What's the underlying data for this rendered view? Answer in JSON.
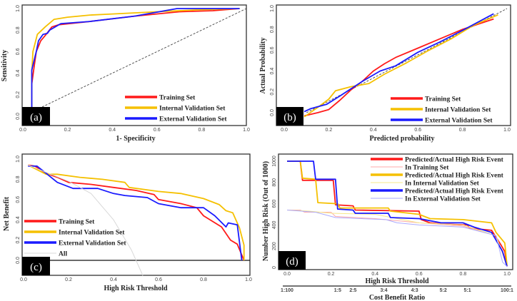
{
  "colors": {
    "training": "#ff1a1a",
    "internal": "#f5c000",
    "external": "#1a1aff",
    "training_light": "#ffaaaa",
    "internal_light": "#f5e88a",
    "external_light": "#aaaaff",
    "all": "#d8d8d8"
  },
  "chart_data": [
    {
      "id": "a",
      "type": "line",
      "panel_label": "(a)",
      "title": "",
      "xlabel": "1- Specificity",
      "ylabel": "Sensitivity",
      "xlim": [
        0,
        1
      ],
      "ylim": [
        0,
        1
      ],
      "xticks": [
        "0.0",
        "0.2",
        "0.4",
        "0.6",
        "0.8",
        "1.0"
      ],
      "xtick_values": [
        0,
        0.2,
        0.4,
        0.6,
        0.8,
        1
      ],
      "yticks": [
        "0.0",
        "0.2",
        "0.4",
        "0.6",
        "0.8",
        "1.0"
      ],
      "ytick_values": [
        0,
        0.2,
        0.4,
        0.6,
        0.8,
        1
      ],
      "legend_position": "bottom-right",
      "reference_line": {
        "style": "dashed",
        "x": [
          0,
          1
        ],
        "y": [
          0,
          1
        ]
      },
      "series": [
        {
          "name": "Training Set",
          "color_key": "training",
          "x": [
            0.04,
            0.04,
            0.05,
            0.06,
            0.08,
            0.1,
            0.13,
            0.16,
            0.3,
            0.5,
            0.7,
            0.85,
            0.97
          ],
          "y": [
            0,
            0.3,
            0.45,
            0.6,
            0.7,
            0.75,
            0.83,
            0.85,
            0.88,
            0.93,
            0.97,
            0.98,
            1.0
          ]
        },
        {
          "name": "Internal Validation Set",
          "color_key": "internal",
          "x": [
            0.04,
            0.04,
            0.045,
            0.065,
            0.1,
            0.14,
            0.2,
            0.3,
            0.4,
            0.6,
            0.8,
            0.97
          ],
          "y": [
            0,
            0.4,
            0.6,
            0.76,
            0.83,
            0.9,
            0.92,
            0.94,
            0.95,
            0.97,
            0.99,
            1.0
          ]
        },
        {
          "name": "External Validation Set",
          "color_key": "external",
          "x": [
            0.04,
            0.04,
            0.06,
            0.07,
            0.09,
            0.11,
            0.12,
            0.17,
            0.3,
            0.5,
            0.69,
            0.97
          ],
          "y": [
            0,
            0.43,
            0.6,
            0.7,
            0.76,
            0.77,
            0.8,
            0.86,
            0.88,
            0.93,
            1.0,
            1.0
          ]
        }
      ]
    },
    {
      "id": "b",
      "type": "line",
      "panel_label": "(b)",
      "title": "",
      "xlabel": "Predicted probability",
      "ylabel": "Actual Probability",
      "xlim": [
        0,
        1
      ],
      "ylim": [
        -0.1,
        1
      ],
      "xticks": [
        "0.0",
        "0.2",
        "0.4",
        "0.6",
        "0.8",
        "1.0"
      ],
      "xtick_values": [
        0,
        0.2,
        0.4,
        0.6,
        0.8,
        1
      ],
      "yticks": [
        "0.0",
        "0.2",
        "0.4",
        "0.6",
        "0.8",
        "1.0"
      ],
      "ytick_values": [
        0,
        0.2,
        0.4,
        0.6,
        0.8,
        1
      ],
      "legend_position": "bottom-right",
      "reference_line": {
        "style": "dashed",
        "x": [
          0.1,
          1
        ],
        "y": [
          0,
          1
        ]
      },
      "series": [
        {
          "name": "Training Set",
          "color_key": "training",
          "x": [
            0.09,
            0.15,
            0.2,
            0.25,
            0.3,
            0.35,
            0.4,
            0.45,
            0.5,
            0.6,
            0.7,
            0.8,
            0.94
          ],
          "y": [
            -0.03,
            0.0,
            0.03,
            0.12,
            0.22,
            0.3,
            0.4,
            0.47,
            0.53,
            0.62,
            0.71,
            0.8,
            0.9
          ]
        },
        {
          "name": "Internal Validation Set",
          "color_key": "internal",
          "x": [
            0.09,
            0.15,
            0.2,
            0.23,
            0.3,
            0.38,
            0.45,
            0.55,
            0.65,
            0.75,
            0.85,
            0.96
          ],
          "y": [
            -0.04,
            0.05,
            0.13,
            0.21,
            0.25,
            0.28,
            0.37,
            0.48,
            0.6,
            0.71,
            0.84,
            0.94
          ]
        },
        {
          "name": "External Validation Set",
          "color_key": "external",
          "x": [
            0.09,
            0.12,
            0.19,
            0.25,
            0.35,
            0.43,
            0.5,
            0.6,
            0.7,
            0.8,
            0.94
          ],
          "y": [
            0.01,
            0.04,
            0.08,
            0.16,
            0.3,
            0.4,
            0.45,
            0.58,
            0.68,
            0.79,
            0.95
          ]
        }
      ]
    },
    {
      "id": "c",
      "type": "line",
      "panel_label": "(c)",
      "title": "",
      "xlabel": "High Risk Threshold",
      "ylabel": "Net Benefit",
      "xlim": [
        0,
        1
      ],
      "ylim": [
        -0.15,
        1
      ],
      "xticks": [
        "0.0",
        "0.2",
        "0.4",
        "0.6",
        "0.8",
        "1.0"
      ],
      "xtick_values": [
        0,
        0.2,
        0.4,
        0.6,
        0.8,
        1
      ],
      "yticks": [
        "0.0",
        "0.2",
        "0.4",
        "0.6",
        "0.8",
        "1.0"
      ],
      "ytick_values": [
        0,
        0.2,
        0.4,
        0.6,
        0.8,
        1
      ],
      "legend_position": "bottom-left",
      "series": [
        {
          "name": "Training Set",
          "color_key": "training",
          "x": [
            0.02,
            0.05,
            0.1,
            0.15,
            0.2,
            0.3,
            0.4,
            0.5,
            0.58,
            0.6,
            0.7,
            0.77,
            0.8,
            0.88,
            0.92,
            0.95,
            0.98
          ],
          "y": [
            0.94,
            0.93,
            0.86,
            0.82,
            0.77,
            0.75,
            0.72,
            0.69,
            0.65,
            0.6,
            0.56,
            0.52,
            0.44,
            0.33,
            0.2,
            0.16,
            0.0
          ]
        },
        {
          "name": "Internal Validation Set",
          "color_key": "internal",
          "x": [
            0.02,
            0.1,
            0.15,
            0.25,
            0.35,
            0.45,
            0.47,
            0.6,
            0.7,
            0.8,
            0.87,
            0.9,
            0.93,
            0.96,
            0.98,
            0.98
          ],
          "y": [
            0.94,
            0.85,
            0.85,
            0.82,
            0.8,
            0.77,
            0.72,
            0.68,
            0.66,
            0.61,
            0.55,
            0.49,
            0.47,
            0.32,
            0.15,
            0.0
          ]
        },
        {
          "name": "External Validation Set",
          "color_key": "external",
          "x": [
            0.02,
            0.06,
            0.1,
            0.15,
            0.22,
            0.33,
            0.4,
            0.45,
            0.55,
            0.6,
            0.7,
            0.8,
            0.85,
            0.9,
            0.91,
            0.95,
            0.97
          ],
          "y": [
            0.93,
            0.93,
            0.86,
            0.77,
            0.71,
            0.71,
            0.66,
            0.64,
            0.62,
            0.56,
            0.52,
            0.52,
            0.44,
            0.33,
            0.37,
            0.35,
            0.0
          ]
        },
        {
          "name": "All",
          "color_key": "all",
          "x": [
            0.02,
            0.2,
            0.3,
            0.4,
            0.48,
            0.53
          ],
          "y": [
            0.94,
            0.78,
            0.66,
            0.4,
            0.1,
            -0.15
          ]
        }
      ],
      "zero_line": true
    },
    {
      "id": "d",
      "type": "line",
      "panel_label": "(d)",
      "title": "",
      "xlabel": "High Risk Threshold",
      "ylabel": "Number High Risk (Out of 1000)",
      "xlim": [
        0,
        1
      ],
      "ylim": [
        0,
        1000
      ],
      "xticks": [
        "0.0",
        "0.2",
        "0.4",
        "0.6",
        "0.8",
        "1.0"
      ],
      "xtick_values": [
        0,
        0.2,
        0.4,
        0.6,
        0.8,
        1
      ],
      "yticks": [
        "0",
        "200",
        "400",
        "600",
        "800",
        "1000"
      ],
      "ytick_values": [
        0,
        200,
        400,
        600,
        800,
        1000
      ],
      "secondary_xlabel": "Cost Benefit Ratio",
      "secondary_xticks": [
        "1:100",
        "1:5",
        "2:5",
        "3:4",
        "4:3",
        "5:2",
        "5:1",
        "100:1"
      ],
      "secondary_xtick_values": [
        0.0,
        0.23,
        0.3,
        0.44,
        0.58,
        0.71,
        0.82,
        1.0
      ],
      "legend_position": "top-right",
      "series": [
        {
          "name": "Predicted/Actual High Risk Event",
          "color_key": "training",
          "x": [
            0,
            0.06,
            0.07,
            0.21,
            0.22,
            0.3,
            0.31,
            0.6,
            0.61,
            0.65,
            0.7,
            0.82,
            0.83,
            0.93,
            0.97,
            0.99,
            1.0
          ],
          "y": [
            1000,
            1000,
            820,
            820,
            590,
            580,
            540,
            530,
            450,
            420,
            410,
            400,
            370,
            350,
            220,
            150,
            10
          ]
        },
        {
          "name": "In Training Set",
          "color_key": "training_light",
          "x": [
            0,
            0.06,
            0.08,
            0.2,
            0.22,
            0.4,
            0.6,
            0.8,
            0.95,
            1.0
          ],
          "y": [
            540,
            540,
            520,
            520,
            480,
            460,
            420,
            390,
            300,
            10
          ]
        },
        {
          "name": "Predicted/Actual High Risk Event",
          "color_key": "internal",
          "x": [
            0,
            0.06,
            0.07,
            0.13,
            0.14,
            0.23,
            0.24,
            0.46,
            0.47,
            0.6,
            0.65,
            0.8,
            0.93,
            0.95,
            0.99,
            1.0
          ],
          "y": [
            1000,
            1000,
            840,
            830,
            610,
            600,
            560,
            560,
            530,
            500,
            460,
            450,
            420,
            330,
            230,
            20
          ]
        },
        {
          "name": "In Internal Validation Set",
          "color_key": "internal_light",
          "x": [
            0,
            0.1,
            0.2,
            0.4,
            0.6,
            0.8,
            0.95,
            1.0
          ],
          "y": [
            540,
            530,
            510,
            500,
            420,
            400,
            300,
            20
          ]
        },
        {
          "name": "Predicted/Actual High Risk Event",
          "color_key": "external",
          "x": [
            0,
            0.12,
            0.13,
            0.22,
            0.23,
            0.3,
            0.31,
            0.46,
            0.47,
            0.6,
            0.7,
            0.8,
            0.85,
            0.93,
            0.98,
            1.0
          ],
          "y": [
            1000,
            1000,
            830,
            830,
            550,
            540,
            510,
            510,
            470,
            460,
            420,
            420,
            380,
            330,
            150,
            10
          ]
        },
        {
          "name": "In External Validation Set",
          "color_key": "external_light",
          "x": [
            0,
            0.13,
            0.22,
            0.45,
            0.5,
            0.6,
            0.8,
            0.95,
            0.98,
            1.0
          ],
          "y": [
            540,
            520,
            470,
            450,
            420,
            400,
            380,
            300,
            50,
            10
          ]
        }
      ]
    }
  ]
}
